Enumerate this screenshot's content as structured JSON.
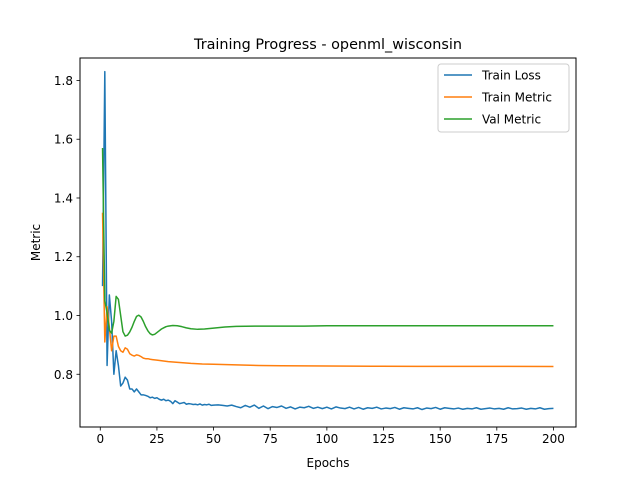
{
  "chart_data": {
    "type": "line",
    "title": "Training Progress - openml_wisconsin",
    "xlabel": "Epochs",
    "ylabel": "Metric",
    "xlim": [
      -8.95,
      209.95
    ],
    "ylim": [
      0.6205,
      1.8765
    ],
    "xticks": [
      0,
      25,
      50,
      75,
      100,
      125,
      150,
      175,
      200
    ],
    "yticks": [
      0.8,
      1.0,
      1.2,
      1.4,
      1.6,
      1.8
    ],
    "xtick_labels": [
      "0",
      "25",
      "50",
      "75",
      "100",
      "125",
      "150",
      "175",
      "200"
    ],
    "ytick_labels": [
      "0.8",
      "1.0",
      "1.2",
      "1.4",
      "1.6",
      "1.8"
    ],
    "grid": false,
    "legend_position": "top-right",
    "series": [
      {
        "name": "Train Loss",
        "color": "#1f77b4",
        "x": [
          1,
          2,
          3,
          4,
          5,
          6,
          7,
          8,
          9,
          10,
          11,
          12,
          13,
          14,
          15,
          16,
          17,
          18,
          19,
          20,
          21,
          22,
          23,
          24,
          25,
          26,
          27,
          28,
          29,
          30,
          31,
          32,
          33,
          34,
          35,
          36,
          37,
          38,
          39,
          40,
          41,
          42,
          43,
          44,
          45,
          46,
          47,
          48,
          49,
          50,
          52,
          54,
          56,
          58,
          60,
          62,
          64,
          66,
          68,
          70,
          72,
          74,
          76,
          78,
          80,
          82,
          84,
          86,
          88,
          90,
          92,
          94,
          96,
          98,
          100,
          102,
          104,
          106,
          108,
          110,
          112,
          114,
          116,
          118,
          120,
          122,
          124,
          126,
          128,
          130,
          132,
          134,
          136,
          138,
          140,
          142,
          144,
          146,
          148,
          150,
          152,
          154,
          156,
          158,
          160,
          162,
          164,
          166,
          168,
          170,
          172,
          174,
          176,
          178,
          180,
          182,
          184,
          186,
          188,
          190,
          192,
          194,
          196,
          198,
          200
        ],
        "y": [
          1.1,
          1.83,
          0.83,
          1.07,
          0.98,
          0.8,
          0.88,
          0.83,
          0.76,
          0.77,
          0.79,
          0.78,
          0.75,
          0.75,
          0.74,
          0.75,
          0.74,
          0.73,
          0.73,
          0.728,
          0.725,
          0.72,
          0.722,
          0.718,
          0.72,
          0.715,
          0.712,
          0.715,
          0.71,
          0.712,
          0.708,
          0.7,
          0.71,
          0.705,
          0.7,
          0.702,
          0.704,
          0.698,
          0.7,
          0.699,
          0.697,
          0.698,
          0.696,
          0.699,
          0.695,
          0.697,
          0.696,
          0.698,
          0.694,
          0.695,
          0.696,
          0.694,
          0.692,
          0.695,
          0.69,
          0.686,
          0.694,
          0.688,
          0.695,
          0.684,
          0.692,
          0.683,
          0.69,
          0.687,
          0.692,
          0.684,
          0.689,
          0.682,
          0.688,
          0.686,
          0.691,
          0.684,
          0.688,
          0.683,
          0.688,
          0.682,
          0.689,
          0.685,
          0.683,
          0.688,
          0.682,
          0.687,
          0.681,
          0.686,
          0.684,
          0.688,
          0.682,
          0.685,
          0.683,
          0.687,
          0.681,
          0.686,
          0.684,
          0.682,
          0.686,
          0.68,
          0.685,
          0.683,
          0.687,
          0.681,
          0.686,
          0.684,
          0.682,
          0.685,
          0.681,
          0.684,
          0.682,
          0.686,
          0.681,
          0.683,
          0.685,
          0.682,
          0.684,
          0.681,
          0.686,
          0.682,
          0.683,
          0.685,
          0.681,
          0.684,
          0.682,
          0.686,
          0.681,
          0.683,
          0.684
        ]
      },
      {
        "name": "Train Metric",
        "color": "#ff7f0e",
        "x": [
          1,
          2,
          3,
          4,
          5,
          6,
          7,
          8,
          9,
          10,
          11,
          12,
          13,
          14,
          15,
          16,
          17,
          18,
          19,
          20,
          21,
          22,
          23,
          24,
          25,
          30,
          35,
          40,
          45,
          50,
          60,
          70,
          80,
          90,
          100,
          120,
          140,
          160,
          180,
          200
        ],
        "y": [
          1.35,
          0.91,
          1.03,
          0.96,
          0.88,
          0.93,
          0.93,
          0.895,
          0.88,
          0.875,
          0.89,
          0.885,
          0.87,
          0.865,
          0.862,
          0.866,
          0.864,
          0.86,
          0.855,
          0.853,
          0.853,
          0.851,
          0.85,
          0.849,
          0.848,
          0.843,
          0.84,
          0.837,
          0.835,
          0.834,
          0.832,
          0.83,
          0.829,
          0.8285,
          0.828,
          0.8275,
          0.827,
          0.8268,
          0.8267,
          0.8265
        ]
      },
      {
        "name": "Val Metric",
        "color": "#2ca02c",
        "x": [
          1,
          2,
          3,
          4,
          5,
          6,
          7,
          8,
          9,
          10,
          11,
          12,
          13,
          14,
          15,
          16,
          17,
          18,
          19,
          20,
          21,
          22,
          23,
          24,
          25,
          26,
          27,
          28,
          29,
          30,
          32,
          34,
          36,
          38,
          40,
          43,
          46,
          50,
          55,
          60,
          70,
          80,
          90,
          100,
          120,
          140,
          160,
          180,
          200
        ],
        "y": [
          1.57,
          1.05,
          1.01,
          0.95,
          0.94,
          0.98,
          1.065,
          1.055,
          1.0,
          0.945,
          0.93,
          0.933,
          0.944,
          0.96,
          0.98,
          0.997,
          1.001,
          0.995,
          0.98,
          0.962,
          0.948,
          0.938,
          0.934,
          0.936,
          0.942,
          0.948,
          0.954,
          0.958,
          0.962,
          0.964,
          0.966,
          0.965,
          0.962,
          0.958,
          0.955,
          0.953,
          0.954,
          0.957,
          0.961,
          0.963,
          0.964,
          0.964,
          0.964,
          0.965,
          0.965,
          0.965,
          0.965,
          0.965,
          0.965
        ]
      }
    ]
  }
}
